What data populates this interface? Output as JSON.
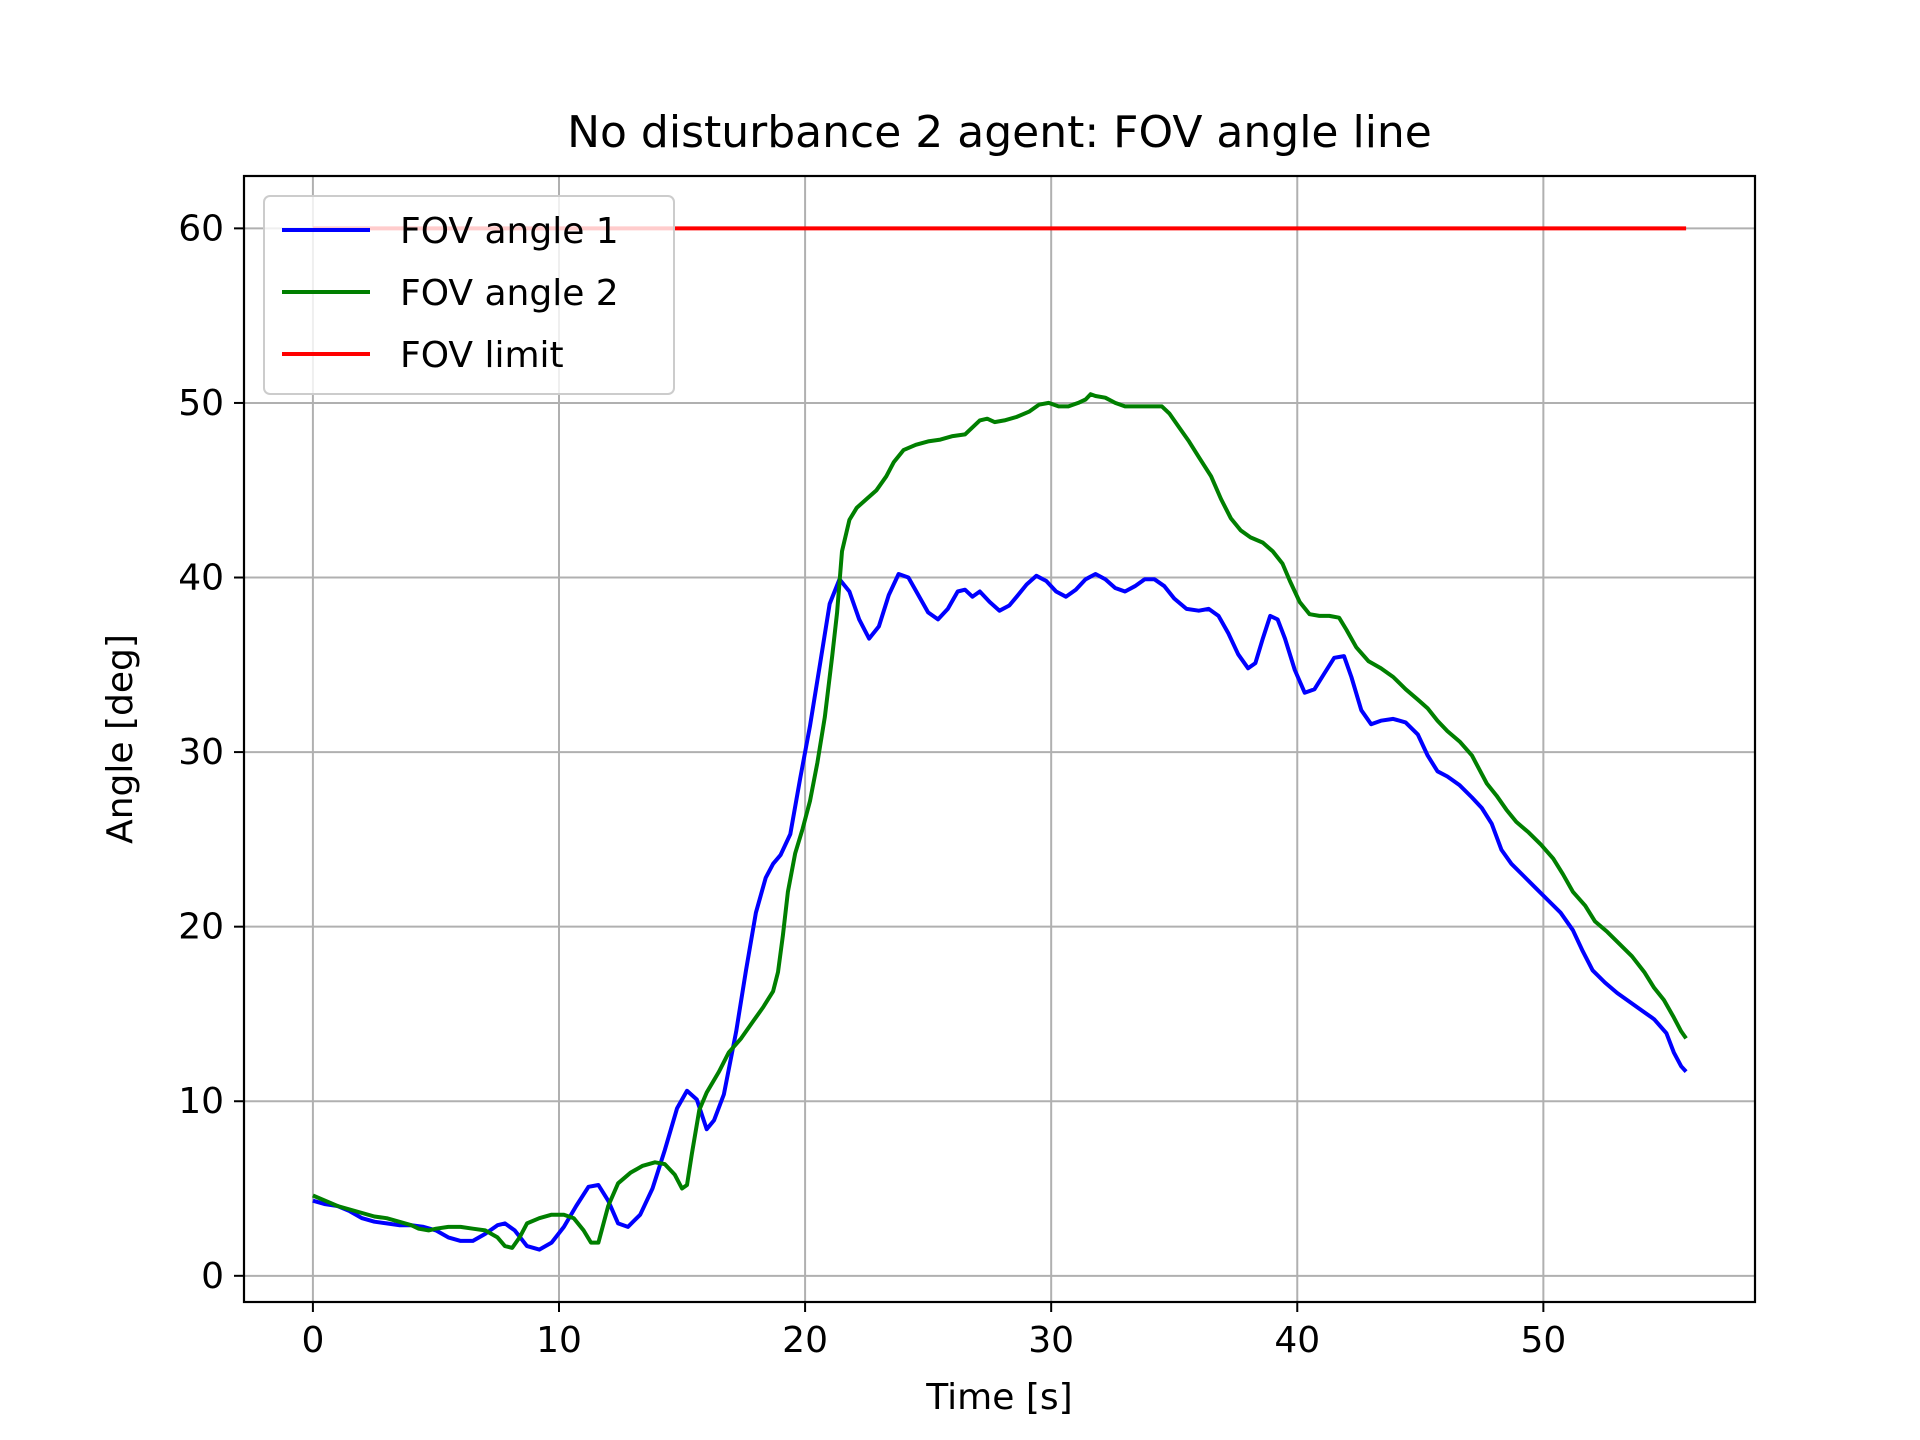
{
  "chart_data": {
    "type": "line",
    "title": "No disturbance 2 agent: FOV angle line",
    "xlabel": "Time [s]",
    "ylabel": "Angle [deg]",
    "xlim": [
      -2.8,
      58.6
    ],
    "ylim": [
      -1.5,
      63
    ],
    "xticks": [
      0,
      10,
      20,
      30,
      40,
      50
    ],
    "yticks": [
      0,
      10,
      20,
      30,
      40,
      50,
      60
    ],
    "grid": true,
    "legend_position": "upper-left",
    "series": [
      {
        "name": "FOV angle 1",
        "color": "#0000ff",
        "points": [
          [
            0,
            4.3
          ],
          [
            0.5,
            4.1
          ],
          [
            1,
            4.0
          ],
          [
            1.5,
            3.7
          ],
          [
            2,
            3.3
          ],
          [
            2.5,
            3.1
          ],
          [
            3,
            3.0
          ],
          [
            3.5,
            2.9
          ],
          [
            4,
            2.9
          ],
          [
            4.5,
            2.8
          ],
          [
            5,
            2.6
          ],
          [
            5.5,
            2.2
          ],
          [
            6,
            2.0
          ],
          [
            6.5,
            2.0
          ],
          [
            7,
            2.4
          ],
          [
            7.5,
            2.9
          ],
          [
            7.8,
            3.0
          ],
          [
            8.2,
            2.6
          ],
          [
            8.7,
            1.7
          ],
          [
            9.2,
            1.5
          ],
          [
            9.7,
            1.9
          ],
          [
            10.2,
            2.8
          ],
          [
            10.7,
            4.0
          ],
          [
            11.2,
            5.1
          ],
          [
            11.6,
            5.2
          ],
          [
            12,
            4.3
          ],
          [
            12.4,
            3.0
          ],
          [
            12.8,
            2.8
          ],
          [
            13.3,
            3.5
          ],
          [
            13.8,
            5.0
          ],
          [
            14.3,
            7.2
          ],
          [
            14.8,
            9.6
          ],
          [
            15.2,
            10.6
          ],
          [
            15.6,
            10.1
          ],
          [
            16,
            8.4
          ],
          [
            16.3,
            8.9
          ],
          [
            16.7,
            10.4
          ],
          [
            17.2,
            14.0
          ],
          [
            17.6,
            17.5
          ],
          [
            18,
            20.8
          ],
          [
            18.4,
            22.8
          ],
          [
            18.7,
            23.6
          ],
          [
            19,
            24.1
          ],
          [
            19.4,
            25.3
          ],
          [
            19.8,
            28.5
          ],
          [
            20.2,
            31.5
          ],
          [
            20.6,
            35.0
          ],
          [
            21,
            38.5
          ],
          [
            21.4,
            39.9
          ],
          [
            21.8,
            39.2
          ],
          [
            22.2,
            37.6
          ],
          [
            22.6,
            36.5
          ],
          [
            23,
            37.2
          ],
          [
            23.4,
            39.0
          ],
          [
            23.8,
            40.2
          ],
          [
            24.2,
            40.0
          ],
          [
            24.6,
            39.0
          ],
          [
            25,
            38.0
          ],
          [
            25.4,
            37.6
          ],
          [
            25.8,
            38.2
          ],
          [
            26.2,
            39.2
          ],
          [
            26.5,
            39.3
          ],
          [
            26.8,
            38.9
          ],
          [
            27.1,
            39.2
          ],
          [
            27.5,
            38.6
          ],
          [
            27.9,
            38.1
          ],
          [
            28.3,
            38.4
          ],
          [
            28.6,
            38.9
          ],
          [
            29,
            39.6
          ],
          [
            29.4,
            40.1
          ],
          [
            29.8,
            39.8
          ],
          [
            30.2,
            39.2
          ],
          [
            30.6,
            38.9
          ],
          [
            31,
            39.3
          ],
          [
            31.4,
            39.9
          ],
          [
            31.8,
            40.2
          ],
          [
            32.2,
            39.9
          ],
          [
            32.6,
            39.4
          ],
          [
            33,
            39.2
          ],
          [
            33.4,
            39.5
          ],
          [
            33.8,
            39.9
          ],
          [
            34.2,
            39.9
          ],
          [
            34.6,
            39.5
          ],
          [
            35,
            38.8
          ],
          [
            35.5,
            38.2
          ],
          [
            36,
            38.1
          ],
          [
            36.4,
            38.2
          ],
          [
            36.8,
            37.8
          ],
          [
            37.2,
            36.8
          ],
          [
            37.6,
            35.6
          ],
          [
            38,
            34.8
          ],
          [
            38.3,
            35.1
          ],
          [
            38.6,
            36.5
          ],
          [
            38.9,
            37.8
          ],
          [
            39.2,
            37.6
          ],
          [
            39.5,
            36.5
          ],
          [
            39.9,
            34.7
          ],
          [
            40.3,
            33.4
          ],
          [
            40.7,
            33.6
          ],
          [
            41.1,
            34.5
          ],
          [
            41.5,
            35.4
          ],
          [
            41.9,
            35.5
          ],
          [
            42.2,
            34.3
          ],
          [
            42.6,
            32.4
          ],
          [
            43,
            31.6
          ],
          [
            43.4,
            31.8
          ],
          [
            43.9,
            31.9
          ],
          [
            44.4,
            31.7
          ],
          [
            44.9,
            31.0
          ],
          [
            45.3,
            29.8
          ],
          [
            45.7,
            28.9
          ],
          [
            46.1,
            28.6
          ],
          [
            46.6,
            28.1
          ],
          [
            47.1,
            27.4
          ],
          [
            47.5,
            26.8
          ],
          [
            47.9,
            25.9
          ],
          [
            48.3,
            24.4
          ],
          [
            48.7,
            23.6
          ],
          [
            49.2,
            22.9
          ],
          [
            49.7,
            22.2
          ],
          [
            50.2,
            21.5
          ],
          [
            50.7,
            20.8
          ],
          [
            51.2,
            19.8
          ],
          [
            51.6,
            18.6
          ],
          [
            52,
            17.5
          ],
          [
            52.5,
            16.8
          ],
          [
            53,
            16.2
          ],
          [
            53.5,
            15.7
          ],
          [
            54,
            15.2
          ],
          [
            54.5,
            14.7
          ],
          [
            55,
            13.9
          ],
          [
            55.3,
            12.8
          ],
          [
            55.6,
            12.0
          ],
          [
            55.8,
            11.7
          ]
        ]
      },
      {
        "name": "FOV angle 2",
        "color": "#007f00",
        "points": [
          [
            0,
            4.6
          ],
          [
            0.5,
            4.3
          ],
          [
            1,
            4.0
          ],
          [
            1.5,
            3.8
          ],
          [
            2,
            3.6
          ],
          [
            2.5,
            3.4
          ],
          [
            3,
            3.3
          ],
          [
            3.5,
            3.1
          ],
          [
            4,
            2.9
          ],
          [
            4.3,
            2.7
          ],
          [
            4.7,
            2.6
          ],
          [
            5,
            2.7
          ],
          [
            5.5,
            2.8
          ],
          [
            6,
            2.8
          ],
          [
            6.5,
            2.7
          ],
          [
            7,
            2.6
          ],
          [
            7.5,
            2.2
          ],
          [
            7.8,
            1.7
          ],
          [
            8.1,
            1.6
          ],
          [
            8.4,
            2.2
          ],
          [
            8.7,
            3.0
          ],
          [
            9.2,
            3.3
          ],
          [
            9.7,
            3.5
          ],
          [
            10.2,
            3.5
          ],
          [
            10.6,
            3.3
          ],
          [
            11,
            2.6
          ],
          [
            11.3,
            1.9
          ],
          [
            11.6,
            1.9
          ],
          [
            12,
            4.0
          ],
          [
            12.4,
            5.3
          ],
          [
            12.9,
            5.9
          ],
          [
            13.4,
            6.3
          ],
          [
            13.9,
            6.5
          ],
          [
            14.3,
            6.4
          ],
          [
            14.7,
            5.8
          ],
          [
            15,
            5.0
          ],
          [
            15.2,
            5.2
          ],
          [
            15.4,
            7.0
          ],
          [
            15.7,
            9.5
          ],
          [
            16,
            10.5
          ],
          [
            16.5,
            11.7
          ],
          [
            16.9,
            12.8
          ],
          [
            17.4,
            13.6
          ],
          [
            17.9,
            14.6
          ],
          [
            18.3,
            15.4
          ],
          [
            18.7,
            16.3
          ],
          [
            18.9,
            17.4
          ],
          [
            19.1,
            19.5
          ],
          [
            19.3,
            22.0
          ],
          [
            19.6,
            24.2
          ],
          [
            19.9,
            25.6
          ],
          [
            20.2,
            27.2
          ],
          [
            20.5,
            29.4
          ],
          [
            20.8,
            32.0
          ],
          [
            21.1,
            35.5
          ],
          [
            21.3,
            38.0
          ],
          [
            21.5,
            41.5
          ],
          [
            21.8,
            43.3
          ],
          [
            22.1,
            44.0
          ],
          [
            22.5,
            44.5
          ],
          [
            22.9,
            45.0
          ],
          [
            23.3,
            45.8
          ],
          [
            23.6,
            46.6
          ],
          [
            24,
            47.3
          ],
          [
            24.5,
            47.6
          ],
          [
            25,
            47.8
          ],
          [
            25.5,
            47.9
          ],
          [
            26,
            48.1
          ],
          [
            26.5,
            48.2
          ],
          [
            26.8,
            48.6
          ],
          [
            27.1,
            49.0
          ],
          [
            27.4,
            49.1
          ],
          [
            27.7,
            48.9
          ],
          [
            28.1,
            49.0
          ],
          [
            28.6,
            49.2
          ],
          [
            29.1,
            49.5
          ],
          [
            29.5,
            49.9
          ],
          [
            29.9,
            50.0
          ],
          [
            30.3,
            49.8
          ],
          [
            30.7,
            49.8
          ],
          [
            31.1,
            50.0
          ],
          [
            31.4,
            50.2
          ],
          [
            31.6,
            50.5
          ],
          [
            31.8,
            50.4
          ],
          [
            32.2,
            50.3
          ],
          [
            32.6,
            50.0
          ],
          [
            33,
            49.8
          ],
          [
            33.5,
            49.8
          ],
          [
            34,
            49.8
          ],
          [
            34.5,
            49.8
          ],
          [
            34.8,
            49.4
          ],
          [
            35.2,
            48.6
          ],
          [
            35.6,
            47.8
          ],
          [
            36,
            46.9
          ],
          [
            36.5,
            45.8
          ],
          [
            36.9,
            44.5
          ],
          [
            37.3,
            43.4
          ],
          [
            37.7,
            42.7
          ],
          [
            38.1,
            42.3
          ],
          [
            38.6,
            42.0
          ],
          [
            39,
            41.5
          ],
          [
            39.4,
            40.8
          ],
          [
            39.7,
            39.8
          ],
          [
            40.1,
            38.6
          ],
          [
            40.5,
            37.9
          ],
          [
            40.9,
            37.8
          ],
          [
            41.3,
            37.8
          ],
          [
            41.7,
            37.7
          ],
          [
            42,
            37.0
          ],
          [
            42.4,
            36.0
          ],
          [
            42.9,
            35.2
          ],
          [
            43.4,
            34.8
          ],
          [
            43.9,
            34.3
          ],
          [
            44.4,
            33.6
          ],
          [
            44.9,
            33.0
          ],
          [
            45.3,
            32.5
          ],
          [
            45.7,
            31.8
          ],
          [
            46.1,
            31.2
          ],
          [
            46.6,
            30.6
          ],
          [
            47.1,
            29.8
          ],
          [
            47.4,
            29.0
          ],
          [
            47.7,
            28.2
          ],
          [
            48.1,
            27.5
          ],
          [
            48.5,
            26.7
          ],
          [
            48.9,
            26.0
          ],
          [
            49.4,
            25.4
          ],
          [
            49.9,
            24.7
          ],
          [
            50.4,
            23.9
          ],
          [
            50.8,
            23.0
          ],
          [
            51.2,
            22.0
          ],
          [
            51.7,
            21.2
          ],
          [
            52.1,
            20.3
          ],
          [
            52.6,
            19.7
          ],
          [
            53.1,
            19.0
          ],
          [
            53.6,
            18.3
          ],
          [
            54.1,
            17.4
          ],
          [
            54.5,
            16.5
          ],
          [
            54.9,
            15.8
          ],
          [
            55.3,
            14.8
          ],
          [
            55.6,
            14.0
          ],
          [
            55.8,
            13.6
          ]
        ]
      },
      {
        "name": "FOV limit",
        "color": "#ff0000",
        "points": [
          [
            0,
            60
          ],
          [
            55.8,
            60
          ]
        ]
      }
    ]
  }
}
